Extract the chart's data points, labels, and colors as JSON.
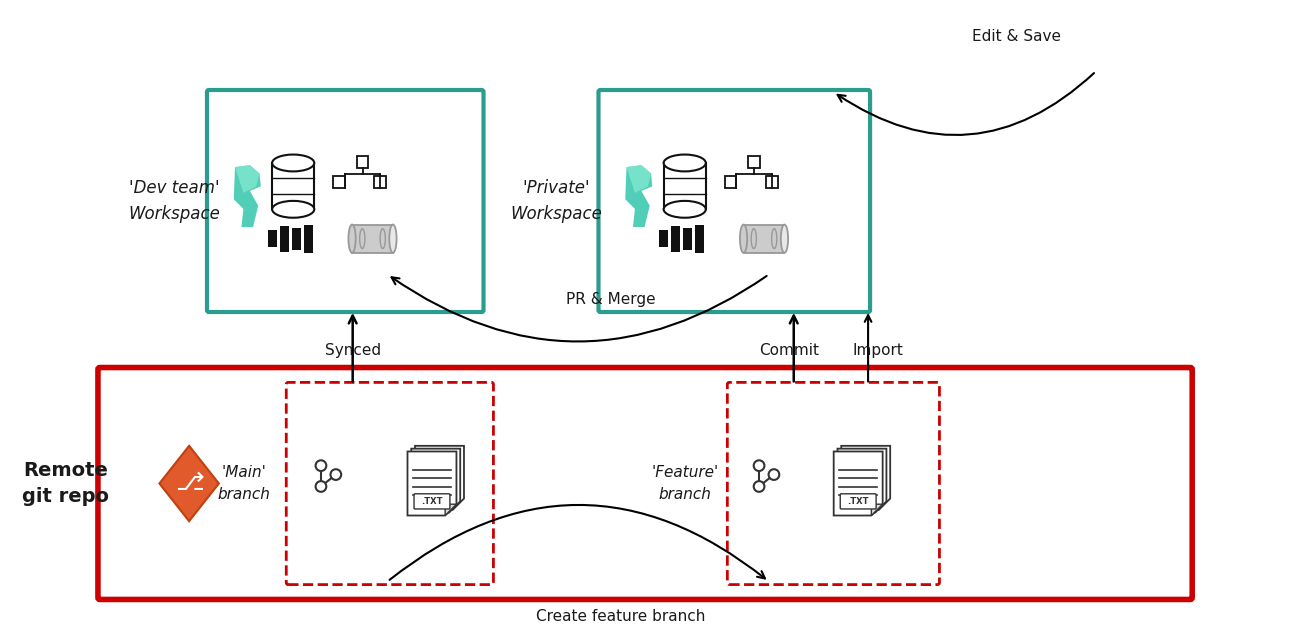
{
  "bg_color": "#ffffff",
  "teal_border": "#2a9d8f",
  "red_border": "#cc0000",
  "arrow_color": "#222222",
  "text_color": "#1a1a1a",
  "git_icon_color": "#e05a2b",
  "workspace_left_label": "'Dev team'\nWorkspace",
  "workspace_right_label": "'Private'\nWorkspace",
  "repo_label": "Remote\ngit repo",
  "main_branch_label": "'Main'\nbranch",
  "feature_branch_label": "'Feature'\nbranch",
  "synced_label": "Synced",
  "commit_label": "Commit",
  "import_label": "Import",
  "pr_merge_label": "PR & Merge",
  "create_branch_label": "Create feature branch",
  "edit_save_label": "Edit & Save"
}
